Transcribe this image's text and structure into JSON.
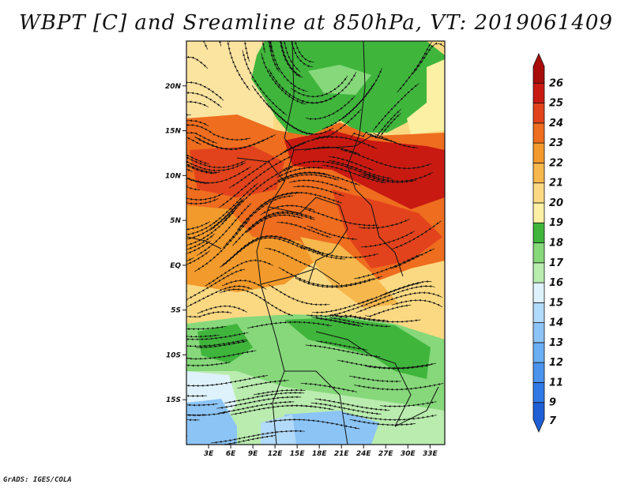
{
  "title": "WBPT [C] and Sreamline at 850hPa, VT: 2019061409",
  "credit": "GrADS: IGES/COLA",
  "map": {
    "projection": "latlon",
    "lon_range": [
      0,
      35
    ],
    "lat_range": [
      -20,
      25
    ],
    "lon_ticks": [
      {
        "value": 3,
        "label": "3E"
      },
      {
        "value": 6,
        "label": "6E"
      },
      {
        "value": 9,
        "label": "9E"
      },
      {
        "value": 12,
        "label": "12E"
      },
      {
        "value": 15,
        "label": "15E"
      },
      {
        "value": 18,
        "label": "18E"
      },
      {
        "value": 21,
        "label": "21E"
      },
      {
        "value": 24,
        "label": "24E"
      },
      {
        "value": 27,
        "label": "27E"
      },
      {
        "value": 30,
        "label": "30E"
      },
      {
        "value": 33,
        "label": "33E"
      }
    ],
    "lat_ticks": [
      {
        "value": 20,
        "label": "20N"
      },
      {
        "value": 15,
        "label": "15N"
      },
      {
        "value": 10,
        "label": "10N"
      },
      {
        "value": 5,
        "label": "5N"
      },
      {
        "value": 0,
        "label": "EQ"
      },
      {
        "value": -5,
        "label": "5S"
      },
      {
        "value": -10,
        "label": "10S"
      },
      {
        "value": -15,
        "label": "15S"
      }
    ],
    "field": "Wet-bulb potential temperature (C) at 850hPa with streamlines",
    "regions": [
      {
        "name": "northern-green",
        "level": 17
      },
      {
        "name": "northern-band-hot",
        "level": 24
      },
      {
        "name": "equatorial-band",
        "level": 21
      },
      {
        "name": "southern-green",
        "level": 16
      },
      {
        "name": "southwest-blue",
        "level": 13
      }
    ]
  },
  "colorbar": {
    "levels": [
      "7",
      "9",
      "11",
      "12",
      "13",
      "14",
      "15",
      "16",
      "17",
      "18",
      "19",
      "20",
      "21",
      "22",
      "23",
      "24",
      "25",
      "26"
    ],
    "colors": [
      "#1f5fd6",
      "#2f7ae6",
      "#4a94ee",
      "#6aaef3",
      "#8cc4f6",
      "#b2dafa",
      "#def2fb",
      "#b9ecae",
      "#86d87a",
      "#3fb53c",
      "#fbf0a4",
      "#fbd983",
      "#f6b74c",
      "#f39a2c",
      "#ee6d1e",
      "#e2431c",
      "#c91a12",
      "#a80d0b"
    ]
  }
}
